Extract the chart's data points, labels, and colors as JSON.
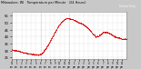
{
  "title": "Milwaukee, WI   Temperature per Minute   (24 Hours)",
  "bg_color": "#c8c8c8",
  "plot_bg_color": "#ffffff",
  "line_color": "#dd0000",
  "legend_box_color": "#cc0000",
  "legend_text": "Outdoor Temp",
  "ylim": [
    24,
    58
  ],
  "yticks": [
    25,
    30,
    35,
    40,
    45,
    50,
    55
  ],
  "num_points": 1440,
  "vline_x": [
    360,
    720
  ],
  "vline_color": "#aaaaaa",
  "temp_keypoints": [
    [
      0,
      30.5
    ],
    [
      60,
      30.0
    ],
    [
      120,
      29.0
    ],
    [
      180,
      28.2
    ],
    [
      240,
      27.5
    ],
    [
      300,
      27.2
    ],
    [
      330,
      27.0
    ],
    [
      360,
      27.5
    ],
    [
      390,
      29.0
    ],
    [
      420,
      31.5
    ],
    [
      450,
      34.0
    ],
    [
      480,
      37.0
    ],
    [
      510,
      40.5
    ],
    [
      540,
      43.5
    ],
    [
      570,
      46.5
    ],
    [
      600,
      49.0
    ],
    [
      630,
      51.0
    ],
    [
      660,
      52.5
    ],
    [
      690,
      53.5
    ],
    [
      720,
      53.0
    ],
    [
      750,
      52.5
    ],
    [
      780,
      52.0
    ],
    [
      810,
      51.0
    ],
    [
      840,
      50.0
    ],
    [
      870,
      49.5
    ],
    [
      900,
      48.5
    ],
    [
      930,
      47.0
    ],
    [
      960,
      45.5
    ],
    [
      990,
      43.5
    ],
    [
      1020,
      41.5
    ],
    [
      1050,
      40.0
    ],
    [
      1080,
      40.5
    ],
    [
      1110,
      41.5
    ],
    [
      1140,
      43.0
    ],
    [
      1170,
      43.5
    ],
    [
      1200,
      43.0
    ],
    [
      1230,
      42.0
    ],
    [
      1260,
      41.0
    ],
    [
      1290,
      40.0
    ],
    [
      1320,
      39.5
    ],
    [
      1350,
      39.0
    ],
    [
      1380,
      38.5
    ],
    [
      1440,
      38.0
    ]
  ]
}
